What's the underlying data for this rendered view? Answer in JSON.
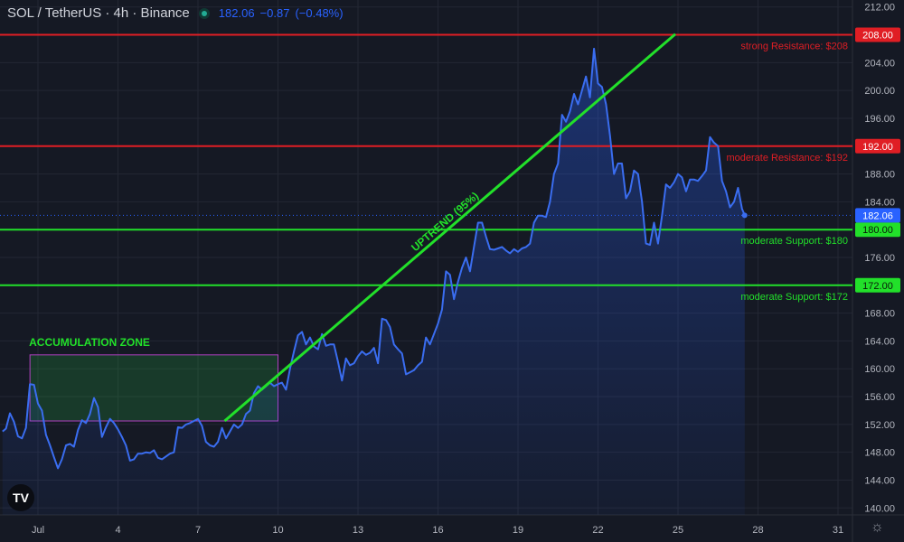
{
  "header": {
    "symbol": "SOL / TetherUS · 4h · Binance",
    "last_price": "182.06",
    "change": "−0.87",
    "change_pct": "(−0.48%)"
  },
  "logo_text": "TV",
  "settings_icon": "gear-icon",
  "colors": {
    "background": "#151924",
    "price_line": "#3a6df0",
    "resistance": "#e01e24",
    "support": "#22e02a",
    "trend": "#22e02a",
    "grid": "#232733",
    "axis_text": "#b2b5be",
    "last_price_tag": "#2962ff"
  },
  "chart_data": {
    "type": "line",
    "title": "SOL / TetherUS · 4h · Binance",
    "ylim": [
      139,
      213
    ],
    "y_ticks": [
      "212.00",
      "208.00",
      "204.00",
      "200.00",
      "196.00",
      "192.00",
      "188.00",
      "184.00",
      "180.00",
      "176.00",
      "172.00",
      "168.00",
      "164.00",
      "160.00",
      "156.00",
      "152.00",
      "148.00",
      "144.00",
      "140.00"
    ],
    "x_ticks": [
      {
        "label": "Jul",
        "day": 1
      },
      {
        "label": "4",
        "day": 4
      },
      {
        "label": "7",
        "day": 7
      },
      {
        "label": "10",
        "day": 10
      },
      {
        "label": "13",
        "day": 13
      },
      {
        "label": "16",
        "day": 16
      },
      {
        "label": "19",
        "day": 19
      },
      {
        "label": "22",
        "day": 22
      },
      {
        "label": "25",
        "day": 25
      },
      {
        "label": "28",
        "day": 28
      },
      {
        "label": "31",
        "day": 31
      }
    ],
    "xlim": [
      -0.35,
      30.0
    ],
    "series": [
      {
        "values": [
          [
            -0.33,
            151.0
          ],
          [
            -0.2,
            151.4
          ],
          [
            -0.05,
            153.6
          ],
          [
            0.1,
            152.4
          ],
          [
            0.25,
            150.3
          ],
          [
            0.4,
            150.0
          ],
          [
            0.55,
            151.5
          ],
          [
            0.7,
            157.8
          ],
          [
            0.85,
            157.7
          ],
          [
            1.0,
            155.0
          ],
          [
            1.15,
            154.0
          ],
          [
            1.3,
            150.5
          ],
          [
            1.45,
            149.0
          ],
          [
            1.6,
            147.3
          ],
          [
            1.75,
            145.7
          ],
          [
            1.9,
            147.0
          ],
          [
            2.05,
            149.0
          ],
          [
            2.2,
            149.2
          ],
          [
            2.35,
            148.8
          ],
          [
            2.5,
            151.2
          ],
          [
            2.65,
            152.6
          ],
          [
            2.8,
            152.2
          ],
          [
            2.95,
            153.5
          ],
          [
            3.1,
            155.8
          ],
          [
            3.25,
            154.5
          ],
          [
            3.4,
            150.2
          ],
          [
            3.55,
            151.6
          ],
          [
            3.7,
            152.8
          ],
          [
            3.85,
            152.2
          ],
          [
            4.0,
            151.3
          ],
          [
            4.15,
            150.2
          ],
          [
            4.3,
            149.0
          ],
          [
            4.45,
            146.8
          ],
          [
            4.6,
            147.0
          ],
          [
            4.75,
            147.8
          ],
          [
            4.9,
            147.8
          ],
          [
            5.05,
            148.0
          ],
          [
            5.2,
            147.9
          ],
          [
            5.35,
            148.3
          ],
          [
            5.5,
            147.2
          ],
          [
            5.65,
            147.0
          ],
          [
            5.8,
            147.4
          ],
          [
            5.95,
            147.8
          ],
          [
            6.1,
            148.0
          ],
          [
            6.25,
            151.6
          ],
          [
            6.4,
            151.5
          ],
          [
            6.55,
            152.0
          ],
          [
            6.7,
            152.2
          ],
          [
            6.85,
            152.5
          ],
          [
            7.0,
            152.8
          ],
          [
            7.15,
            151.8
          ],
          [
            7.3,
            149.5
          ],
          [
            7.45,
            149.0
          ],
          [
            7.6,
            148.8
          ],
          [
            7.75,
            149.5
          ],
          [
            7.9,
            151.5
          ],
          [
            8.05,
            150.0
          ],
          [
            8.2,
            151.0
          ],
          [
            8.35,
            152.0
          ],
          [
            8.5,
            151.5
          ],
          [
            8.65,
            152.0
          ],
          [
            8.8,
            153.5
          ],
          [
            8.95,
            154.0
          ],
          [
            9.1,
            156.5
          ],
          [
            9.25,
            157.5
          ],
          [
            9.4,
            157.0
          ],
          [
            9.55,
            157.5
          ],
          [
            9.7,
            158.0
          ],
          [
            9.85,
            157.5
          ],
          [
            10.0,
            157.8
          ],
          [
            10.15,
            158.0
          ],
          [
            10.3,
            157.0
          ],
          [
            10.45,
            160.0
          ],
          [
            10.6,
            162.5
          ],
          [
            10.75,
            164.8
          ],
          [
            10.9,
            165.3
          ],
          [
            11.05,
            163.5
          ],
          [
            11.2,
            164.5
          ],
          [
            11.35,
            163.2
          ],
          [
            11.5,
            162.8
          ],
          [
            11.65,
            165.0
          ],
          [
            11.8,
            163.3
          ],
          [
            11.95,
            163.5
          ],
          [
            12.1,
            163.5
          ],
          [
            12.25,
            161.0
          ],
          [
            12.4,
            158.3
          ],
          [
            12.55,
            161.5
          ],
          [
            12.7,
            160.5
          ],
          [
            12.85,
            160.8
          ],
          [
            13.0,
            161.8
          ],
          [
            13.15,
            162.5
          ],
          [
            13.3,
            162.0
          ],
          [
            13.45,
            162.3
          ],
          [
            13.6,
            163.0
          ],
          [
            13.75,
            160.8
          ],
          [
            13.9,
            167.2
          ],
          [
            14.05,
            167.0
          ],
          [
            14.2,
            166.0
          ],
          [
            14.35,
            163.5
          ],
          [
            14.5,
            162.8
          ],
          [
            14.65,
            162.2
          ],
          [
            14.8,
            159.2
          ],
          [
            14.95,
            159.5
          ],
          [
            15.1,
            159.8
          ],
          [
            15.25,
            160.5
          ],
          [
            15.4,
            161.0
          ],
          [
            15.55,
            164.5
          ],
          [
            15.7,
            163.5
          ],
          [
            15.85,
            165.0
          ],
          [
            16.0,
            166.5
          ],
          [
            16.15,
            168.5
          ],
          [
            16.3,
            174.0
          ],
          [
            16.45,
            173.5
          ],
          [
            16.6,
            170.0
          ],
          [
            16.75,
            172.5
          ],
          [
            16.9,
            174.5
          ],
          [
            17.05,
            176.0
          ],
          [
            17.2,
            174.0
          ],
          [
            17.35,
            177.5
          ],
          [
            17.5,
            181.0
          ],
          [
            17.65,
            181.0
          ],
          [
            17.8,
            179.0
          ],
          [
            17.95,
            177.2
          ],
          [
            18.1,
            177.1
          ],
          [
            18.25,
            177.3
          ],
          [
            18.4,
            177.5
          ],
          [
            18.55,
            177.0
          ],
          [
            18.7,
            176.6
          ],
          [
            18.85,
            177.2
          ],
          [
            19.0,
            176.8
          ],
          [
            19.15,
            177.3
          ],
          [
            19.3,
            177.5
          ],
          [
            19.45,
            178.0
          ],
          [
            19.6,
            181.0
          ],
          [
            19.75,
            182.0
          ],
          [
            19.9,
            182.0
          ],
          [
            20.05,
            181.8
          ],
          [
            20.2,
            184.0
          ],
          [
            20.35,
            188.0
          ],
          [
            20.5,
            189.5
          ],
          [
            20.65,
            196.5
          ],
          [
            20.8,
            195.5
          ],
          [
            20.95,
            197.0
          ],
          [
            21.1,
            199.5
          ],
          [
            21.25,
            198.0
          ],
          [
            21.4,
            200.0
          ],
          [
            21.55,
            202.0
          ],
          [
            21.7,
            199.0
          ],
          [
            21.85,
            206.0
          ],
          [
            22.0,
            201.0
          ],
          [
            22.15,
            200.5
          ],
          [
            22.3,
            198.0
          ],
          [
            22.45,
            193.5
          ],
          [
            22.6,
            188.0
          ],
          [
            22.75,
            189.5
          ],
          [
            22.9,
            189.5
          ],
          [
            23.05,
            184.5
          ],
          [
            23.2,
            185.5
          ],
          [
            23.35,
            188.5
          ],
          [
            23.5,
            188.0
          ],
          [
            23.65,
            184.0
          ],
          [
            23.8,
            178.0
          ],
          [
            23.95,
            177.8
          ],
          [
            24.1,
            181.0
          ],
          [
            24.25,
            178.0
          ],
          [
            24.4,
            182.0
          ],
          [
            24.55,
            186.5
          ],
          [
            24.7,
            186.0
          ],
          [
            24.85,
            186.8
          ],
          [
            25.0,
            188.0
          ],
          [
            25.15,
            187.5
          ],
          [
            25.3,
            185.5
          ],
          [
            25.45,
            187.2
          ],
          [
            25.6,
            187.2
          ],
          [
            25.75,
            187.0
          ],
          [
            25.9,
            187.7
          ],
          [
            26.05,
            188.5
          ],
          [
            26.2,
            193.3
          ],
          [
            26.35,
            192.5
          ],
          [
            26.5,
            192.0
          ],
          [
            26.65,
            187.0
          ],
          [
            26.8,
            185.5
          ],
          [
            26.95,
            183.2
          ],
          [
            27.1,
            184.0
          ],
          [
            27.25,
            186.0
          ],
          [
            27.4,
            183.0
          ],
          [
            27.5,
            182.06
          ]
        ]
      }
    ],
    "last_price": 182.06,
    "horizontal_levels": [
      {
        "price": 208,
        "tag": "208.00",
        "kind": "resistance",
        "label": "strong Resistance: $208"
      },
      {
        "price": 192,
        "tag": "192.00",
        "kind": "resistance",
        "label": "moderate Resistance: $192"
      },
      {
        "price": 180,
        "tag": "180.00",
        "kind": "support",
        "label": "moderate Support: $180"
      },
      {
        "price": 172,
        "tag": "172.00",
        "kind": "support",
        "label": "moderate Support: $172"
      }
    ],
    "trendline": {
      "label": "UPTREND (95%)",
      "from": [
        8.0,
        152.5
      ],
      "to": [
        24.9,
        208.1
      ]
    },
    "zone": {
      "label": "ACCUMULATION ZONE",
      "x": [
        0.7,
        10.0
      ],
      "y": [
        152.5,
        162.0
      ]
    },
    "grid": true
  }
}
